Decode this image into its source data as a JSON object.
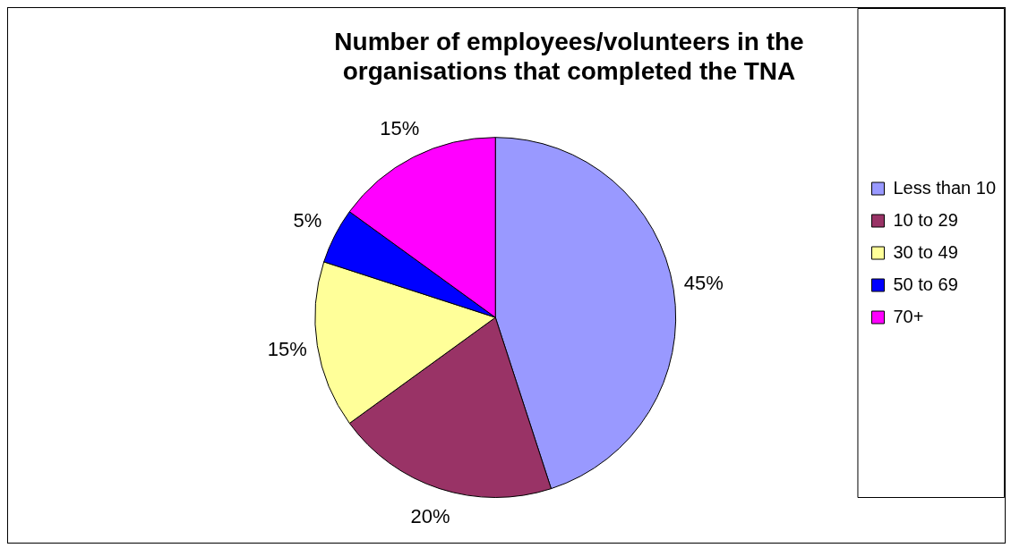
{
  "chart_data": {
    "type": "pie",
    "title": "Number of employees/volunteers in the organisations that completed the TNA",
    "categories": [
      "Less than 10",
      "10 to 29",
      "30 to 49",
      "50 to 69",
      "70+"
    ],
    "values": [
      45,
      20,
      15,
      5,
      15
    ],
    "value_labels": [
      "45%",
      "20%",
      "15%",
      "5%",
      "15%"
    ],
    "colors": [
      "#9999ff",
      "#993366",
      "#ffff99",
      "#0000ff",
      "#ff00ff"
    ],
    "legend": "right"
  }
}
